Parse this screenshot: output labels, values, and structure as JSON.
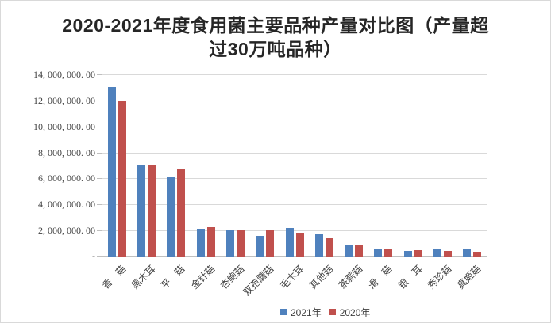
{
  "title": {
    "full": "2020-2021年度食用菌主要品种产量对比图（产量超过30万吨品种）",
    "line1": "2020-2021年度食用菌主要品种产量对比图（产量超",
    "line2": "过30万吨品种）"
  },
  "colors": {
    "series_2021": "#4F81BD",
    "series_2020": "#C0504D",
    "gridline": "#D9D9D9",
    "axis_line": "#BFBFBF",
    "label_text": "#404040",
    "title_text": "#262626",
    "background": "#FFFFFF",
    "border": "#D9D9D9"
  },
  "chart_data": {
    "type": "bar",
    "title": "2020-2021年度食用菌主要品种产量对比图（产量超过30万吨品种）",
    "xlabel": "",
    "ylabel": "",
    "grid": true,
    "legend_position": "bottom",
    "categories": [
      "香　菇",
      "黑木耳",
      "平　菇",
      "金针菇",
      "杏鲍菇",
      "双孢蘑菇",
      "毛木耳",
      "其他菇",
      "茶薪菇",
      "滑　菇",
      "银　耳",
      "秀珍菇",
      "真姬菇"
    ],
    "series": [
      {
        "name": "2021年",
        "color": "#4F81BD",
        "values": [
          13000000,
          7050000,
          6100000,
          2100000,
          2010000,
          1580000,
          2170000,
          1780000,
          870000,
          550000,
          440000,
          550000,
          520000
        ]
      },
      {
        "name": "2020年",
        "color": "#C0504D",
        "values": [
          11900000,
          7030000,
          6780000,
          2250000,
          2070000,
          2020000,
          1800000,
          1380000,
          880000,
          610000,
          480000,
          400000,
          340000
        ]
      }
    ],
    "y_axis": {
      "min": 0,
      "max": 14000000,
      "step": 2000000,
      "ticks": [
        {
          "value": 0,
          "label": "-"
        },
        {
          "value": 2000000,
          "label": "2, 000, 000. 00"
        },
        {
          "value": 4000000,
          "label": "4, 000, 000. 00"
        },
        {
          "value": 6000000,
          "label": "6, 000, 000. 00"
        },
        {
          "value": 8000000,
          "label": "8, 000, 000. 00"
        },
        {
          "value": 10000000,
          "label": "10, 000, 000. 00"
        },
        {
          "value": 12000000,
          "label": "12, 000, 000. 00"
        },
        {
          "value": 14000000,
          "label": "14, 000, 000. 00"
        }
      ]
    }
  }
}
